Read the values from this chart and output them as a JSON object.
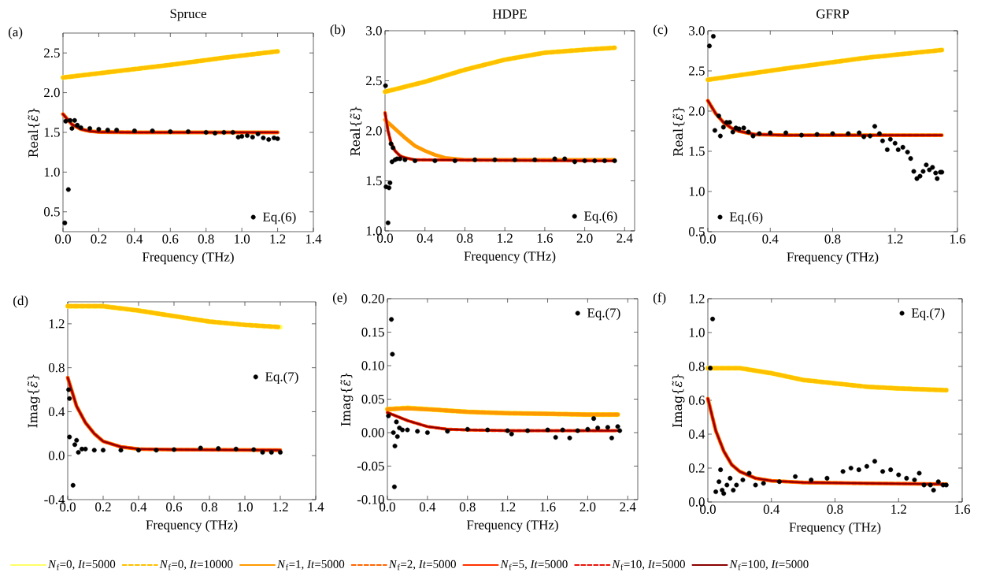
{
  "chart_data": [
    {
      "type": "line",
      "title": "Spruce",
      "xlabel": "Frequency (THz)",
      "ylabel": "Real{*ε̃*}",
      "annotations": [
        "(a)"
      ],
      "legend": "bottom right",
      "xlim": [
        0,
        1.4
      ],
      "ylim": [
        0.25,
        2.75
      ],
      "xticks": [
        {
          "value": 0,
          "label": "0.0"
        },
        0.2,
        0.4,
        0.6,
        0.8,
        {
          "value": 1,
          "label": "1.0"
        },
        1.2,
        1.4
      ],
      "yticks": [
        0.5,
        {
          "value": 1,
          "label": "1.0"
        },
        1.5,
        {
          "value": 2,
          "label": "2.0"
        },
        2.5
      ],
      "series": [
        {
          "type": "scatter",
          "name": "Eq.(6)",
          "color": "#000000",
          "marker": "circle",
          "x": [
            0.01,
            0.03,
            0.015,
            0.04,
            0.05,
            0.065,
            0.08,
            0.1,
            0.15,
            0.2,
            0.25,
            0.3,
            0.4,
            0.5,
            0.6,
            0.7,
            0.8,
            0.85,
            0.9,
            0.95,
            0.98,
            1.0,
            1.03,
            1.06,
            1.09,
            1.12,
            1.15,
            1.18,
            1.2
          ],
          "values": [
            0.36,
            0.78,
            1.64,
            1.65,
            1.55,
            1.65,
            1.59,
            1.56,
            1.55,
            1.54,
            1.53,
            1.53,
            1.52,
            1.52,
            1.51,
            1.51,
            1.5,
            1.49,
            1.5,
            1.5,
            1.44,
            1.45,
            1.46,
            1.44,
            1.48,
            1.43,
            1.41,
            1.43,
            1.42
          ]
        },
        {
          "type": "line",
          "color": "#ffff66",
          "line_style": "solid",
          "x": [
            0,
            0.3,
            0.6,
            0.9,
            1.2
          ],
          "values": [
            2.19,
            2.27,
            2.35,
            2.44,
            2.52
          ]
        },
        {
          "type": "line",
          "color": "#ffc000",
          "line_style": "dashed",
          "x": [
            0,
            0.3,
            0.6,
            0.9,
            1.2
          ],
          "values": [
            2.19,
            2.27,
            2.35,
            2.44,
            2.52
          ]
        },
        {
          "type": "line",
          "color": "#ff9900",
          "line_style": "solid",
          "x": [
            0,
            0.05,
            0.1,
            0.15,
            0.2,
            0.4,
            1.2
          ],
          "values": [
            1.73,
            1.6,
            1.54,
            1.515,
            1.505,
            1.5,
            1.5
          ]
        },
        {
          "type": "line",
          "color": "#ff6600",
          "line_style": "dashed",
          "x": [
            0,
            0.05,
            0.1,
            0.15,
            0.2,
            0.4,
            1.2
          ],
          "values": [
            1.73,
            1.6,
            1.54,
            1.515,
            1.505,
            1.5,
            1.5
          ]
        },
        {
          "type": "line",
          "color": "#ff3300",
          "line_style": "solid",
          "x": [
            0,
            0.05,
            0.1,
            0.15,
            0.2,
            0.4,
            1.2
          ],
          "values": [
            1.73,
            1.6,
            1.54,
            1.515,
            1.505,
            1.5,
            1.5
          ]
        },
        {
          "type": "line",
          "color": "#e8140a",
          "line_style": "dashed",
          "x": [
            0,
            0.05,
            0.1,
            0.15,
            0.2,
            0.4,
            1.2
          ],
          "values": [
            1.73,
            1.6,
            1.54,
            1.515,
            1.505,
            1.5,
            1.5
          ]
        },
        {
          "type": "line",
          "color": "#8b0000",
          "line_style": "solid",
          "x": [
            0,
            0.05,
            0.1,
            0.15,
            0.2,
            0.4,
            1.2
          ],
          "values": [
            1.73,
            1.6,
            1.54,
            1.515,
            1.505,
            1.5,
            1.5
          ]
        }
      ]
    },
    {
      "type": "line",
      "title": "HDPE",
      "xlabel": "Frequency (THz)",
      "ylabel": "Real{*ε̃*}",
      "annotations": [
        "(b)"
      ],
      "legend": "bottom right",
      "xlim": [
        0,
        2.5
      ],
      "ylim": [
        1,
        3
      ],
      "xticks": [
        {
          "value": 0,
          "label": "0.0"
        },
        0.4,
        0.8,
        1.2,
        1.6,
        {
          "value": 2,
          "label": "2.0"
        },
        2.4
      ],
      "yticks": [
        {
          "value": 1,
          "label": "1.0"
        },
        1.5,
        {
          "value": 2,
          "label": "2.0"
        },
        2.5,
        {
          "value": 3,
          "label": "3.0"
        }
      ],
      "series": [
        {
          "type": "scatter",
          "name": "Eq.(6)",
          "color": "#000000",
          "marker": "circle",
          "x": [
            0.005,
            0.01,
            0.03,
            0.04,
            0.05,
            0.06,
            0.07,
            0.08,
            0.1,
            0.12,
            0.15,
            0.2,
            0.3,
            0.5,
            0.7,
            0.9,
            1.1,
            1.3,
            1.5,
            1.7,
            1.8,
            1.9,
            2.0,
            2.1,
            2.2,
            2.3
          ],
          "values": [
            2.45,
            1.44,
            1.08,
            1.43,
            1.48,
            1.87,
            1.69,
            1.83,
            1.71,
            1.72,
            1.72,
            1.71,
            1.7,
            1.7,
            1.7,
            1.71,
            1.71,
            1.71,
            1.71,
            1.72,
            1.72,
            1.69,
            1.7,
            1.7,
            1.7,
            1.7
          ]
        },
        {
          "type": "line",
          "color": "#ffff66",
          "line_style": "solid",
          "x": [
            0,
            0.4,
            0.8,
            1.2,
            1.6,
            2.0,
            2.3
          ],
          "values": [
            2.39,
            2.49,
            2.61,
            2.71,
            2.78,
            2.81,
            2.83
          ]
        },
        {
          "type": "line",
          "color": "#ffc000",
          "line_style": "dashed",
          "x": [
            0,
            0.4,
            0.8,
            1.2,
            1.6,
            2.0,
            2.3
          ],
          "values": [
            2.39,
            2.49,
            2.61,
            2.71,
            2.78,
            2.81,
            2.83
          ]
        },
        {
          "type": "line",
          "color": "#ff9900",
          "line_style": "solid",
          "x": [
            0,
            0.1,
            0.2,
            0.3,
            0.4,
            0.5,
            0.6,
            0.8,
            2.3
          ],
          "values": [
            2.11,
            2.02,
            1.93,
            1.85,
            1.8,
            1.76,
            1.73,
            1.71,
            1.71
          ]
        },
        {
          "type": "line",
          "color": "#ff6600",
          "line_style": "dashed",
          "x": [
            0,
            0.03,
            0.06,
            0.1,
            0.15,
            0.2,
            0.3,
            2.3
          ],
          "values": [
            2.18,
            2.0,
            1.88,
            1.8,
            1.75,
            1.73,
            1.71,
            1.7
          ]
        },
        {
          "type": "line",
          "color": "#ff3300",
          "line_style": "solid",
          "x": [
            0,
            0.03,
            0.06,
            0.1,
            0.15,
            0.2,
            0.3,
            2.3
          ],
          "values": [
            2.18,
            2.0,
            1.88,
            1.8,
            1.75,
            1.73,
            1.71,
            1.7
          ]
        },
        {
          "type": "line",
          "color": "#e8140a",
          "line_style": "dashed",
          "x": [
            0,
            0.03,
            0.06,
            0.1,
            0.15,
            0.2,
            0.3,
            2.3
          ],
          "values": [
            2.18,
            2.0,
            1.88,
            1.8,
            1.75,
            1.73,
            1.71,
            1.7
          ]
        },
        {
          "type": "line",
          "color": "#8b0000",
          "line_style": "solid",
          "x": [
            0,
            0.03,
            0.06,
            0.1,
            0.15,
            0.2,
            0.3,
            2.3
          ],
          "values": [
            2.18,
            2.0,
            1.88,
            1.8,
            1.75,
            1.73,
            1.71,
            1.7
          ]
        }
      ]
    },
    {
      "type": "line",
      "title": "GFRP",
      "xlabel": "Frequency (THz)",
      "ylabel": "Real{*ε̃*}",
      "annotations": [
        "(c)"
      ],
      "legend": "bottom left",
      "xlim": [
        0,
        1.6
      ],
      "ylim": [
        0.5,
        3
      ],
      "xticks": [
        {
          "value": 0,
          "label": "0.0"
        },
        0.4,
        0.8,
        1.2,
        1.6
      ],
      "yticks": [
        0.5,
        {
          "value": 1,
          "label": "1.0"
        },
        1.5,
        {
          "value": 2,
          "label": "2.0"
        },
        2.5,
        {
          "value": 3,
          "label": "3.0"
        }
      ],
      "series": [
        {
          "type": "scatter",
          "name": "Eq.(6)",
          "color": "#000000",
          "marker": "circle",
          "x": [
            0.01,
            0.035,
            0.045,
            0.07,
            0.08,
            0.1,
            0.12,
            0.14,
            0.16,
            0.18,
            0.2,
            0.23,
            0.26,
            0.29,
            0.33,
            0.4,
            0.5,
            0.6,
            0.7,
            0.8,
            0.9,
            0.97,
            1.0,
            1.04,
            1.07,
            1.1,
            1.12,
            1.15,
            1.17,
            1.2,
            1.22,
            1.25,
            1.28,
            1.3,
            1.32,
            1.34,
            1.36,
            1.38,
            1.4,
            1.42,
            1.44,
            1.46,
            1.47,
            1.49,
            1.5
          ],
          "values": [
            2.81,
            2.93,
            1.76,
            1.94,
            1.69,
            1.8,
            1.86,
            1.86,
            1.74,
            1.79,
            1.78,
            1.79,
            1.74,
            1.69,
            1.72,
            1.73,
            1.73,
            1.7,
            1.71,
            1.72,
            1.72,
            1.73,
            1.68,
            1.69,
            1.81,
            1.72,
            1.63,
            1.52,
            1.65,
            1.6,
            1.52,
            1.55,
            1.49,
            1.41,
            1.25,
            1.16,
            1.19,
            1.25,
            1.33,
            1.27,
            1.3,
            1.23,
            1.16,
            1.24,
            1.24
          ]
        },
        {
          "type": "line",
          "color": "#ffff66",
          "line_style": "solid",
          "x": [
            0,
            0.5,
            1.0,
            1.5
          ],
          "values": [
            2.39,
            2.53,
            2.66,
            2.76
          ]
        },
        {
          "type": "line",
          "color": "#ffc000",
          "line_style": "dashed",
          "x": [
            0,
            0.5,
            1.0,
            1.5
          ],
          "values": [
            2.39,
            2.53,
            2.66,
            2.76
          ]
        },
        {
          "type": "line",
          "color": "#ff9900",
          "line_style": "solid",
          "x": [
            0,
            0.05,
            0.1,
            0.15,
            0.2,
            0.3,
            0.5,
            1.5
          ],
          "values": [
            2.13,
            1.97,
            1.86,
            1.79,
            1.75,
            1.71,
            1.7,
            1.7
          ]
        },
        {
          "type": "line",
          "color": "#ff6600",
          "line_style": "dashed",
          "x": [
            0,
            0.05,
            0.1,
            0.15,
            0.2,
            0.3,
            0.5,
            1.5
          ],
          "values": [
            2.13,
            1.97,
            1.86,
            1.79,
            1.75,
            1.71,
            1.7,
            1.7
          ]
        },
        {
          "type": "line",
          "color": "#ff3300",
          "line_style": "solid",
          "x": [
            0,
            0.05,
            0.1,
            0.15,
            0.2,
            0.3,
            0.5,
            1.5
          ],
          "values": [
            2.13,
            1.97,
            1.86,
            1.79,
            1.75,
            1.71,
            1.7,
            1.7
          ]
        },
        {
          "type": "line",
          "color": "#e8140a",
          "line_style": "dashed",
          "x": [
            0,
            0.05,
            0.1,
            0.15,
            0.2,
            0.3,
            0.5,
            1.5
          ],
          "values": [
            2.13,
            1.97,
            1.86,
            1.79,
            1.75,
            1.71,
            1.7,
            1.7
          ]
        },
        {
          "type": "line",
          "color": "#8b0000",
          "line_style": "solid",
          "x": [
            0,
            0.05,
            0.1,
            0.15,
            0.2,
            0.3,
            0.5,
            1.5
          ],
          "values": [
            2.13,
            1.97,
            1.86,
            1.79,
            1.75,
            1.71,
            1.7,
            1.7
          ]
        }
      ]
    },
    {
      "type": "line",
      "xlabel": "Frequency (THz)",
      "ylabel": "Imag{*ε̃*}",
      "annotations": [
        "(d)"
      ],
      "legend": "right",
      "xlim": [
        0,
        1.4
      ],
      "ylim": [
        -0.4,
        1.4
      ],
      "xticks": [
        {
          "value": 0,
          "label": "0.0"
        },
        0.2,
        0.4,
        0.6,
        0.8,
        {
          "value": 1,
          "label": "1.0"
        },
        1.2,
        1.4
      ],
      "yticks": [
        -0.4,
        {
          "value": 0,
          "label": "0.0"
        },
        0.4,
        0.8,
        1.2
      ],
      "series": [
        {
          "type": "scatter",
          "name": "Eq.(7)",
          "color": "#000000",
          "marker": "circle",
          "x": [
            0.005,
            0.01,
            0.01,
            0.03,
            0.04,
            0.05,
            0.06,
            0.08,
            0.1,
            0.15,
            0.2,
            0.3,
            0.4,
            0.5,
            0.6,
            0.75,
            0.85,
            0.95,
            1.05,
            1.1,
            1.15,
            1.2
          ],
          "values": [
            0.6,
            0.52,
            0.17,
            -0.27,
            0.1,
            0.14,
            0.03,
            0.06,
            0.06,
            0.05,
            0.05,
            0.05,
            0.05,
            0.05,
            0.055,
            0.07,
            0.065,
            0.06,
            0.055,
            0.03,
            0.03,
            0.03
          ]
        },
        {
          "type": "line",
          "color": "#ffff66",
          "line_style": "solid",
          "x": [
            0,
            0.2,
            0.4,
            0.6,
            0.8,
            1.0,
            1.2
          ],
          "values": [
            1.36,
            1.36,
            1.32,
            1.27,
            1.22,
            1.19,
            1.17
          ]
        },
        {
          "type": "line",
          "color": "#ffc000",
          "line_style": "dashed",
          "x": [
            0,
            0.2,
            0.4,
            0.6,
            0.8,
            1.0,
            1.2
          ],
          "values": [
            1.36,
            1.36,
            1.32,
            1.27,
            1.22,
            1.19,
            1.17
          ]
        },
        {
          "type": "line",
          "color": "#ff9900",
          "line_style": "solid",
          "x": [
            0,
            0.05,
            0.1,
            0.15,
            0.2,
            0.3,
            0.4,
            0.6,
            1.2
          ],
          "values": [
            0.71,
            0.45,
            0.3,
            0.2,
            0.13,
            0.08,
            0.06,
            0.055,
            0.05
          ]
        },
        {
          "type": "line",
          "color": "#ff6600",
          "line_style": "dashed",
          "x": [
            0,
            0.05,
            0.1,
            0.15,
            0.2,
            0.3,
            0.4,
            0.6,
            1.2
          ],
          "values": [
            0.71,
            0.45,
            0.3,
            0.2,
            0.13,
            0.08,
            0.06,
            0.055,
            0.05
          ]
        },
        {
          "type": "line",
          "color": "#ff3300",
          "line_style": "solid",
          "x": [
            0,
            0.05,
            0.1,
            0.15,
            0.2,
            0.3,
            0.4,
            0.6,
            1.2
          ],
          "values": [
            0.71,
            0.45,
            0.3,
            0.2,
            0.13,
            0.08,
            0.06,
            0.055,
            0.05
          ]
        },
        {
          "type": "line",
          "color": "#e8140a",
          "line_style": "dashed",
          "x": [
            0,
            0.05,
            0.1,
            0.15,
            0.2,
            0.3,
            0.4,
            0.6,
            1.2
          ],
          "values": [
            0.71,
            0.45,
            0.3,
            0.2,
            0.13,
            0.08,
            0.06,
            0.055,
            0.05
          ]
        },
        {
          "type": "line",
          "color": "#8b0000",
          "line_style": "solid",
          "x": [
            0,
            0.05,
            0.1,
            0.15,
            0.2,
            0.3,
            0.4,
            0.6,
            1.2
          ],
          "values": [
            0.71,
            0.45,
            0.3,
            0.2,
            0.13,
            0.08,
            0.06,
            0.055,
            0.05
          ]
        }
      ]
    },
    {
      "type": "line",
      "xlabel": "Frequency (THz)",
      "ylabel": "Imag{*ε̃*}",
      "annotations": [
        "(e)"
      ],
      "legend": "top right",
      "xlim": [
        0,
        2.5
      ],
      "ylim": [
        -0.1,
        0.2
      ],
      "xticks": [
        {
          "value": 0,
          "label": "0.0"
        },
        0.4,
        0.8,
        1.2,
        1.6,
        {
          "value": 2,
          "label": "2.0"
        },
        2.4
      ],
      "yticks": [
        {
          "value": -0.1,
          "label": "-0.10"
        },
        -0.05,
        {
          "value": 0,
          "label": "0.00"
        },
        0.05,
        {
          "value": 0.1,
          "label": "0.10"
        },
        0.15,
        {
          "value": 0.2,
          "label": "0.20"
        }
      ],
      "series": [
        {
          "type": "scatter",
          "name": "Eq.(7)",
          "color": "#000000",
          "marker": "circle",
          "x": [
            0.01,
            0.04,
            0.05,
            0.06,
            0.07,
            0.075,
            0.09,
            0.1,
            0.12,
            0.15,
            0.2,
            0.3,
            0.4,
            0.6,
            0.8,
            1.0,
            1.2,
            1.24,
            1.4,
            1.6,
            1.68,
            1.75,
            1.82,
            1.9,
            2.0,
            2.06,
            2.1,
            2.2,
            2.24,
            2.3,
            2.32
          ],
          "values": [
            0.025,
            0.169,
            0.117,
            0.0,
            -0.081,
            -0.02,
            0.016,
            -0.006,
            0.007,
            0.004,
            0.004,
            0.002,
            0.0,
            0.002,
            0.005,
            0.004,
            0.003,
            -0.002,
            0.003,
            0.004,
            -0.007,
            0.004,
            -0.008,
            0.003,
            0.005,
            0.021,
            0.007,
            0.008,
            -0.008,
            0.009,
            0.003
          ]
        },
        {
          "type": "line",
          "color": "#ffff66",
          "line_style": "solid",
          "x": [
            0,
            0.2,
            0.5,
            0.8,
            1.2,
            1.6,
            2.0,
            2.3
          ],
          "values": [
            0.035,
            0.037,
            0.034,
            0.031,
            0.029,
            0.028,
            0.027,
            0.027
          ]
        },
        {
          "type": "line",
          "color": "#ffc000",
          "line_style": "dashed",
          "x": [
            0,
            0.2,
            0.5,
            0.8,
            1.2,
            1.6,
            2.0,
            2.3
          ],
          "values": [
            0.035,
            0.037,
            0.034,
            0.031,
            0.029,
            0.028,
            0.027,
            0.027
          ]
        },
        {
          "type": "line",
          "color": "#ff9900",
          "line_style": "solid",
          "x": [
            0,
            0.2,
            0.5,
            0.8,
            1.2,
            1.6,
            2.0,
            2.3
          ],
          "values": [
            0.035,
            0.036,
            0.034,
            0.031,
            0.029,
            0.028,
            0.027,
            0.027
          ]
        },
        {
          "type": "line",
          "color": "#ff6600",
          "line_style": "dashed",
          "x": [
            0,
            0.1,
            0.2,
            0.4,
            0.6,
            0.8,
            1.2,
            2.3
          ],
          "values": [
            0.03,
            0.024,
            0.018,
            0.009,
            0.005,
            0.004,
            0.003,
            0.003
          ]
        },
        {
          "type": "line",
          "color": "#ff3300",
          "line_style": "solid",
          "x": [
            0,
            0.1,
            0.2,
            0.4,
            0.6,
            0.8,
            1.2,
            2.3
          ],
          "values": [
            0.03,
            0.024,
            0.018,
            0.009,
            0.005,
            0.004,
            0.003,
            0.003
          ]
        },
        {
          "type": "line",
          "color": "#e8140a",
          "line_style": "dashed",
          "x": [
            0,
            0.1,
            0.2,
            0.4,
            0.6,
            0.8,
            1.2,
            2.3
          ],
          "values": [
            0.03,
            0.024,
            0.018,
            0.009,
            0.005,
            0.004,
            0.003,
            0.003
          ]
        },
        {
          "type": "line",
          "color": "#8b0000",
          "line_style": "solid",
          "x": [
            0,
            0.1,
            0.2,
            0.4,
            0.6,
            0.8,
            1.2,
            2.3
          ],
          "values": [
            0.03,
            0.024,
            0.018,
            0.009,
            0.005,
            0.004,
            0.003,
            0.003
          ]
        }
      ]
    },
    {
      "type": "line",
      "xlabel": "Frequency (THz)",
      "ylabel": "Imag{*ε̃*}",
      "annotations": [
        "(f)"
      ],
      "legend": "bottom",
      "xlim": [
        0,
        1.6
      ],
      "ylim": [
        0,
        1.2
      ],
      "xticks": [
        {
          "value": 0,
          "label": "0.0"
        },
        0.4,
        0.8,
        1.2,
        1.6
      ],
      "yticks": [
        {
          "value": 0,
          "label": "0.0"
        },
        0.2,
        0.4,
        0.6,
        0.8,
        {
          "value": 1,
          "label": "1.0"
        },
        1.2
      ],
      "series": [
        {
          "type": "scatter",
          "name": "Eq.(7)",
          "color": "#000000",
          "marker": "circle",
          "x": [
            0.015,
            0.03,
            0.05,
            0.07,
            0.08,
            0.09,
            0.1,
            0.12,
            0.14,
            0.16,
            0.18,
            0.22,
            0.26,
            0.3,
            0.35,
            0.45,
            0.55,
            0.65,
            0.75,
            0.85,
            0.9,
            0.95,
            1.0,
            1.05,
            1.1,
            1.15,
            1.2,
            1.25,
            1.3,
            1.33,
            1.36,
            1.4,
            1.42,
            1.45,
            1.48,
            1.5
          ],
          "values": [
            0.79,
            1.08,
            0.06,
            0.12,
            0.19,
            0.07,
            0.05,
            0.1,
            0.14,
            0.07,
            0.1,
            0.13,
            0.17,
            0.1,
            0.11,
            0.12,
            0.15,
            0.13,
            0.14,
            0.18,
            0.2,
            0.19,
            0.21,
            0.24,
            0.18,
            0.19,
            0.16,
            0.14,
            0.13,
            0.17,
            0.1,
            0.1,
            0.07,
            0.12,
            0.1,
            0.1
          ]
        },
        {
          "type": "line",
          "name": "*N*$_{f}$=0, *It*=5000",
          "color": "#ffff66",
          "line_style": "solid",
          "x": [
            0,
            0.2,
            0.4,
            0.6,
            0.8,
            1.0,
            1.2,
            1.5
          ],
          "values": [
            0.79,
            0.79,
            0.76,
            0.72,
            0.7,
            0.68,
            0.67,
            0.66
          ]
        },
        {
          "type": "line",
          "name": "*N*$_{f}$=0, *It*=10000",
          "color": "#ffc000",
          "line_style": "dashed",
          "x": [
            0,
            0.2,
            0.4,
            0.6,
            0.8,
            1.0,
            1.2,
            1.5
          ],
          "values": [
            0.79,
            0.79,
            0.76,
            0.72,
            0.7,
            0.68,
            0.67,
            0.66
          ]
        },
        {
          "type": "line",
          "name": "*N*$_{f}$=1, *It*=5000",
          "color": "#ff9900",
          "line_style": "solid",
          "x": [
            0,
            0.05,
            0.1,
            0.15,
            0.2,
            0.3,
            0.4,
            0.6,
            1.0,
            1.5
          ],
          "values": [
            0.61,
            0.42,
            0.3,
            0.22,
            0.18,
            0.14,
            0.125,
            0.115,
            0.11,
            0.105
          ]
        },
        {
          "type": "line",
          "name": "*N*$_{f}$=2, *It*=5000",
          "color": "#ff6600",
          "line_style": "dashed",
          "x": [
            0,
            0.05,
            0.1,
            0.15,
            0.2,
            0.3,
            0.4,
            0.6,
            1.0,
            1.5
          ],
          "values": [
            0.61,
            0.42,
            0.3,
            0.22,
            0.18,
            0.14,
            0.125,
            0.115,
            0.11,
            0.105
          ]
        },
        {
          "type": "line",
          "name": "*N*$_{f}$=5, *It*=5000",
          "color": "#ff3300",
          "line_style": "solid",
          "x": [
            0,
            0.05,
            0.1,
            0.15,
            0.2,
            0.3,
            0.4,
            0.6,
            1.0,
            1.5
          ],
          "values": [
            0.61,
            0.42,
            0.3,
            0.22,
            0.18,
            0.14,
            0.125,
            0.115,
            0.11,
            0.105
          ]
        },
        {
          "type": "line",
          "name": "*N*$_{f}$=10, *It*=5000",
          "color": "#e8140a",
          "line_style": "dashed",
          "x": [
            0,
            0.05,
            0.1,
            0.15,
            0.2,
            0.3,
            0.4,
            0.6,
            1.0,
            1.5
          ],
          "values": [
            0.61,
            0.42,
            0.3,
            0.22,
            0.18,
            0.14,
            0.125,
            0.115,
            0.11,
            0.105
          ]
        },
        {
          "type": "line",
          "name": "*N*$_{f}$=100, *It*=5000",
          "color": "#8b0000",
          "line_style": "solid",
          "x": [
            0,
            0.05,
            0.1,
            0.15,
            0.2,
            0.3,
            0.4,
            0.6,
            1.0,
            1.5
          ],
          "values": [
            0.61,
            0.42,
            0.3,
            0.22,
            0.18,
            0.14,
            0.125,
            0.115,
            0.11,
            0.105
          ]
        }
      ]
    }
  ]
}
